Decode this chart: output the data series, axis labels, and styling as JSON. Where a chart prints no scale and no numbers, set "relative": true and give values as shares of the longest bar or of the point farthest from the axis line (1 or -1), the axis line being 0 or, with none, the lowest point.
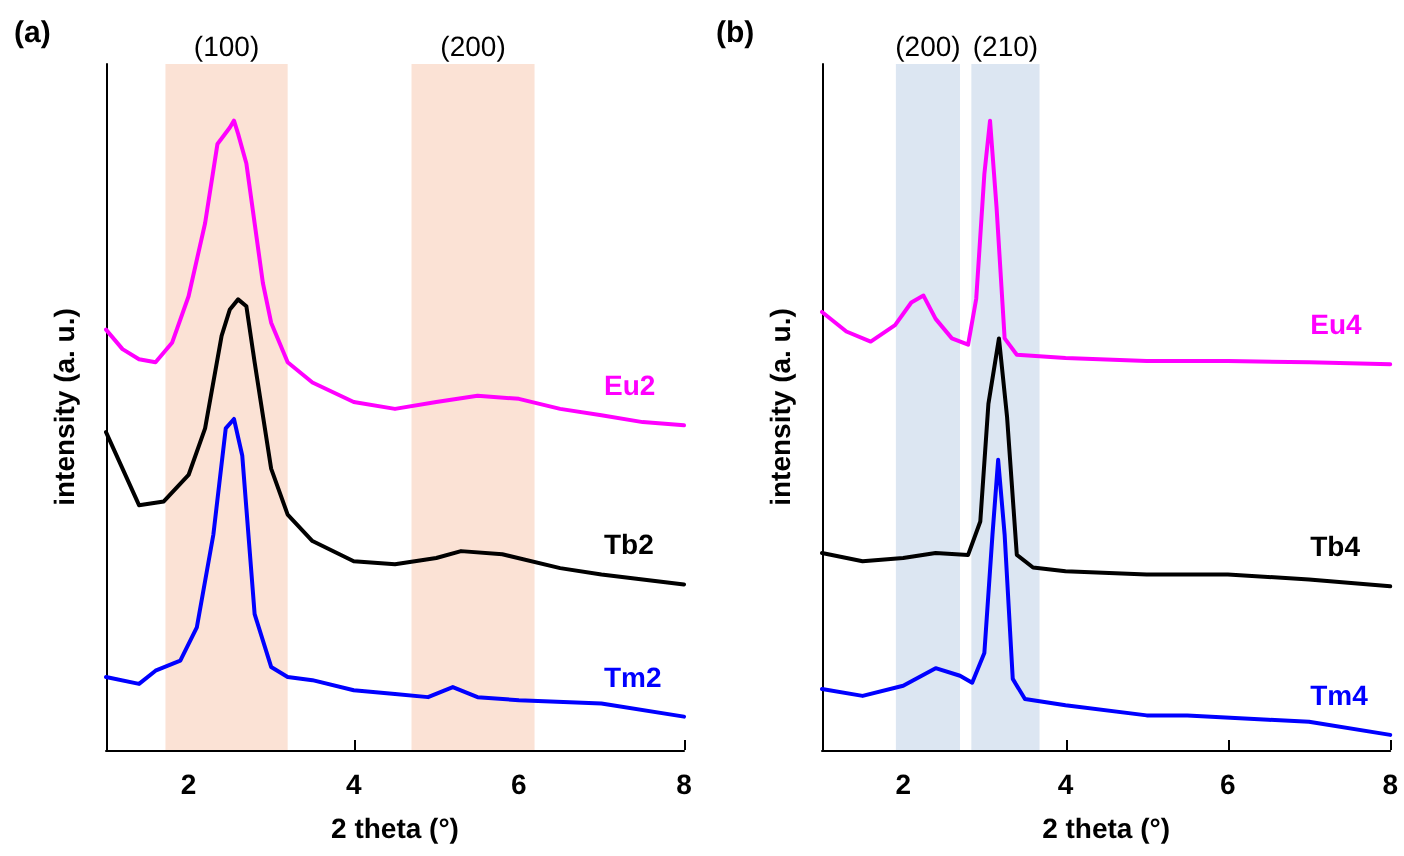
{
  "chart_data": [
    {
      "type": "line",
      "title": "(a)",
      "xlabel": "2 theta (°)",
      "ylabel": "intensity (a. u.)",
      "relative": true,
      "xlim": [
        1,
        8
      ],
      "xticks": [
        2,
        4,
        6,
        8
      ],
      "legend": false,
      "grid": false,
      "marker": "none",
      "line_style": "solid",
      "bands": [
        {
          "axis": "x",
          "from": 1.72,
          "to": 3.2,
          "label": "(100)",
          "color": "#fbe2d5"
        },
        {
          "axis": "x",
          "from": 4.7,
          "to": 6.19,
          "label": "(200)",
          "color": "#fbe2d5"
        }
      ],
      "series": [
        {
          "name": "Eu2",
          "color": "#ff00ff",
          "x": [
            1.0,
            1.2,
            1.4,
            1.6,
            1.8,
            2.0,
            2.2,
            2.35,
            2.5,
            2.55,
            2.6,
            2.7,
            2.8,
            2.9,
            3.0,
            3.2,
            3.5,
            4.0,
            4.5,
            5.0,
            5.5,
            6.0,
            6.5,
            7.0,
            7.5,
            8.0
          ],
          "values": [
            0.668,
            0.637,
            0.621,
            0.616,
            0.647,
            0.721,
            0.837,
            0.963,
            0.989,
            1.0,
            0.979,
            0.932,
            0.837,
            0.742,
            0.679,
            0.616,
            0.584,
            0.553,
            0.542,
            0.553,
            0.563,
            0.558,
            0.542,
            0.532,
            0.521,
            0.516
          ]
        },
        {
          "name": "Tb2",
          "color": "#000000",
          "x": [
            1.0,
            1.2,
            1.4,
            1.7,
            2.0,
            2.2,
            2.4,
            2.5,
            2.6,
            2.7,
            2.8,
            3.0,
            3.2,
            3.5,
            4.0,
            4.5,
            5.0,
            5.3,
            5.8,
            6.5,
            7.0,
            8.0
          ],
          "values": [
            0.505,
            0.447,
            0.389,
            0.395,
            0.437,
            0.511,
            0.658,
            0.7,
            0.716,
            0.705,
            0.616,
            0.447,
            0.374,
            0.332,
            0.3,
            0.295,
            0.305,
            0.316,
            0.311,
            0.289,
            0.279,
            0.263
          ]
        },
        {
          "name": "Tm2",
          "color": "#0000ff",
          "x": [
            1.0,
            1.4,
            1.6,
            1.9,
            2.1,
            2.3,
            2.45,
            2.55,
            2.65,
            2.8,
            3.0,
            3.2,
            3.5,
            4.0,
            4.5,
            4.9,
            5.2,
            5.5,
            6.0,
            7.0,
            8.0
          ],
          "values": [
            0.116,
            0.105,
            0.126,
            0.142,
            0.195,
            0.342,
            0.511,
            0.526,
            0.468,
            0.216,
            0.132,
            0.116,
            0.111,
            0.095,
            0.089,
            0.084,
            0.1,
            0.084,
            0.079,
            0.074,
            0.053
          ]
        }
      ]
    },
    {
      "type": "line",
      "title": "(b)",
      "xlabel": "2 theta (°)",
      "ylabel": "intensity (a. u.)",
      "relative": true,
      "xlim": [
        1,
        8
      ],
      "xticks": [
        2,
        4,
        6,
        8
      ],
      "legend": false,
      "grid": false,
      "marker": "none",
      "line_style": "solid",
      "bands": [
        {
          "axis": "x",
          "from": 1.91,
          "to": 2.7,
          "label": "(200)",
          "color": "#dce6f2"
        },
        {
          "axis": "x",
          "from": 2.84,
          "to": 3.68,
          "label": "(210)",
          "color": "#dce6f2"
        }
      ],
      "series": [
        {
          "name": "Eu4",
          "color": "#ff00ff",
          "x": [
            1.0,
            1.3,
            1.6,
            1.9,
            2.1,
            2.25,
            2.4,
            2.6,
            2.8,
            2.9,
            3.0,
            3.07,
            3.15,
            3.25,
            3.4,
            4.0,
            5.0,
            6.0,
            7.0,
            8.0
          ],
          "values": [
            0.696,
            0.665,
            0.649,
            0.675,
            0.711,
            0.722,
            0.685,
            0.654,
            0.644,
            0.717,
            0.915,
            1.0,
            0.863,
            0.654,
            0.628,
            0.623,
            0.618,
            0.618,
            0.616,
            0.613
          ]
        },
        {
          "name": "Tb4",
          "color": "#000000",
          "x": [
            1.0,
            1.5,
            2.0,
            2.4,
            2.8,
            2.95,
            3.05,
            3.18,
            3.28,
            3.4,
            3.6,
            4.0,
            5.0,
            6.0,
            7.0,
            8.0
          ],
          "values": [
            0.313,
            0.3,
            0.305,
            0.313,
            0.31,
            0.363,
            0.55,
            0.654,
            0.529,
            0.31,
            0.29,
            0.284,
            0.279,
            0.279,
            0.271,
            0.26
          ]
        },
        {
          "name": "Tm4",
          "color": "#0000ff",
          "x": [
            1.0,
            1.5,
            2.0,
            2.4,
            2.7,
            2.85,
            3.0,
            3.1,
            3.17,
            3.25,
            3.35,
            3.5,
            4.0,
            5.0,
            5.5,
            6.5,
            7.0,
            8.0
          ],
          "values": [
            0.097,
            0.086,
            0.102,
            0.13,
            0.118,
            0.107,
            0.154,
            0.342,
            0.461,
            0.342,
            0.113,
            0.081,
            0.071,
            0.055,
            0.055,
            0.048,
            0.045,
            0.024
          ]
        }
      ]
    }
  ]
}
